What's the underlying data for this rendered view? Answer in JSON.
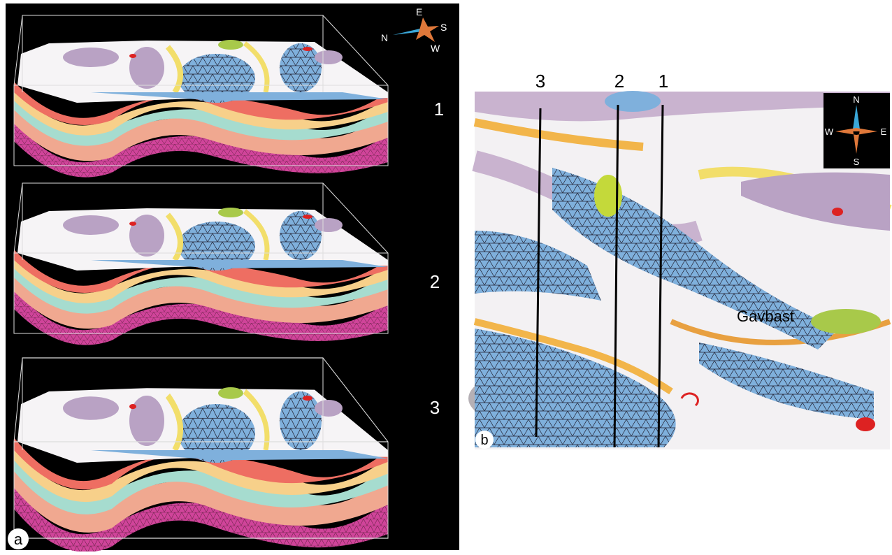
{
  "panel_a": {
    "label": "a",
    "compass": {
      "e": "E",
      "s": "S",
      "n": "N",
      "w": "W"
    },
    "sections": [
      "1",
      "2",
      "3"
    ]
  },
  "panel_b": {
    "label": "b",
    "compass": {
      "n": "N",
      "w": "W",
      "e": "E",
      "s": "S"
    },
    "section_labels": [
      "3",
      "2",
      "1"
    ],
    "place_label": "Gavbast"
  }
}
